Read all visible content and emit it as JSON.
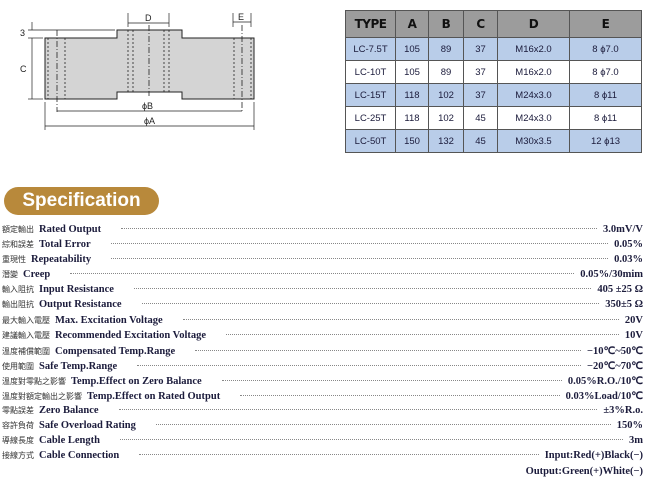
{
  "diagram": {
    "labels": {
      "d": "D",
      "e": "E",
      "three": "3",
      "c": "C",
      "phi_b": "ϕB",
      "phi_a": "ϕA"
    }
  },
  "table": {
    "headers": [
      "TYPE",
      "A",
      "B",
      "C",
      "D",
      "E"
    ],
    "rows": [
      [
        "LC-7.5T",
        "105",
        "89",
        "37",
        "M16x2.0",
        "8 ϕ7.0"
      ],
      [
        "LC-10T",
        "105",
        "89",
        "37",
        "M16x2.0",
        "8 ϕ7.0"
      ],
      [
        "LC-15T",
        "118",
        "102",
        "37",
        "M24x3.0",
        "8 ϕ11"
      ],
      [
        "LC-25T",
        "118",
        "102",
        "45",
        "M24x3.0",
        "8 ϕ11"
      ],
      [
        "LC-50T",
        "150",
        "132",
        "45",
        "M30x3.5",
        "12 ϕ13"
      ]
    ],
    "colors": {
      "header": "#9c9c9c",
      "row_blue": "#b9cde9",
      "row_white": "#ffffff"
    }
  },
  "section_title": "Specification",
  "accent_color": "#b8893b",
  "specs": [
    {
      "zh": "額定輸出",
      "en": "Rated Output",
      "value": "3.0mV/V"
    },
    {
      "zh": "綜和誤差",
      "en": "Total Error",
      "value": "0.05%"
    },
    {
      "zh": "重現性",
      "en": "Repeatability",
      "value": "0.03%"
    },
    {
      "zh": "潛變",
      "en": "Creep",
      "value": "0.05%/30mim"
    },
    {
      "zh": "輸入阻抗",
      "en": "Input Resistance",
      "value": "405 ±25 Ω"
    },
    {
      "zh": "輸出阻抗",
      "en": "Output Resistance",
      "value": "350±5 Ω"
    },
    {
      "zh": "最大輸入電壓",
      "en": "Max. Excitation Voltage",
      "value": "20V"
    },
    {
      "zh": "建議輸入電壓",
      "en": "Recommended Excitation Voltage",
      "value": "10V"
    },
    {
      "zh": "溫度補償範圍",
      "en": "Compensated Temp.Range",
      "value": "−10℃~50℃"
    },
    {
      "zh": "使用範圍",
      "en": "Safe Temp.Range",
      "value": "−20℃~70℃"
    },
    {
      "zh": "溫度對零點之影響",
      "en": "Temp.Effect on Zero Balance",
      "value": "0.05%R.O./10℃"
    },
    {
      "zh": "溫度對額定輸出之影響",
      "en": "Temp.Effect on Rated Output",
      "value": "0.03%Load/10℃"
    },
    {
      "zh": "零點誤差",
      "en": "Zero Balance",
      "value": "±3%R.o."
    },
    {
      "zh": "容許負荷",
      "en": "Safe Overload Rating",
      "value": "150%"
    },
    {
      "zh": "導線長度",
      "en": "Cable Length",
      "value": "3m"
    },
    {
      "zh": "接線方式",
      "en": "Cable Connection",
      "value": "Input:Red(+)Black(−)"
    }
  ],
  "cable_connection_line2": "Output:Green(+)White(−)"
}
